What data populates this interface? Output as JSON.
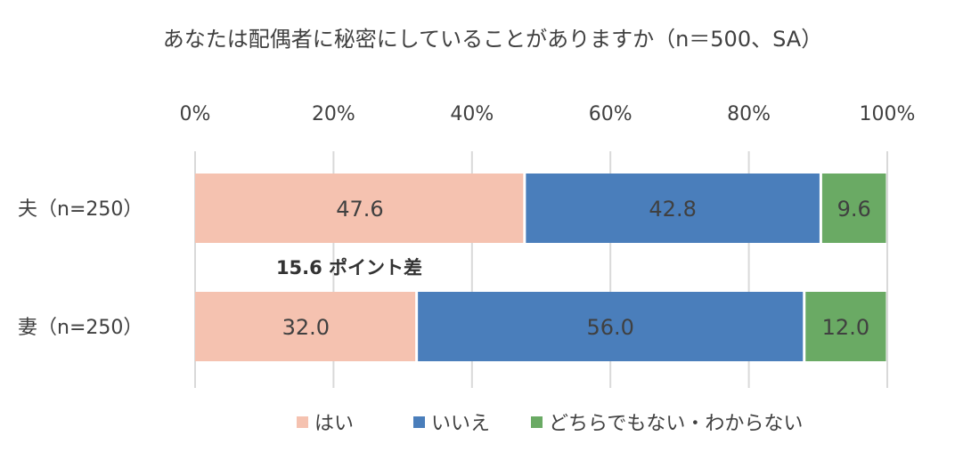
{
  "chart_data": {
    "type": "bar",
    "orientation": "horizontal-stacked-100",
    "title": "あなたは配偶者に秘密にしていることがありますか（n＝500、SA）",
    "categories": [
      "夫（n=250）",
      "妻（n=250）"
    ],
    "series": [
      {
        "name": "はい",
        "color": "#F5C2B0",
        "values": [
          47.6,
          32.0
        ],
        "labels": [
          "47.6",
          "32.0"
        ]
      },
      {
        "name": "いいえ",
        "color": "#4A7EBB",
        "values": [
          42.8,
          56.0
        ],
        "labels": [
          "42.8",
          "56.0"
        ]
      },
      {
        "name": "どちらでもない・わからない",
        "color": "#6AAA64",
        "values": [
          9.6,
          12.0
        ],
        "labels": [
          "9.6",
          "12.0"
        ]
      }
    ],
    "xlim": [
      0,
      100
    ],
    "xticks": [
      "0%",
      "20%",
      "40%",
      "60%",
      "80%",
      "100%"
    ],
    "xtick_values": [
      0,
      20,
      40,
      60,
      80,
      100
    ],
    "axis_position": "top",
    "grid": true,
    "legend": "bottom",
    "annotation": "15.6 ポイント差"
  }
}
